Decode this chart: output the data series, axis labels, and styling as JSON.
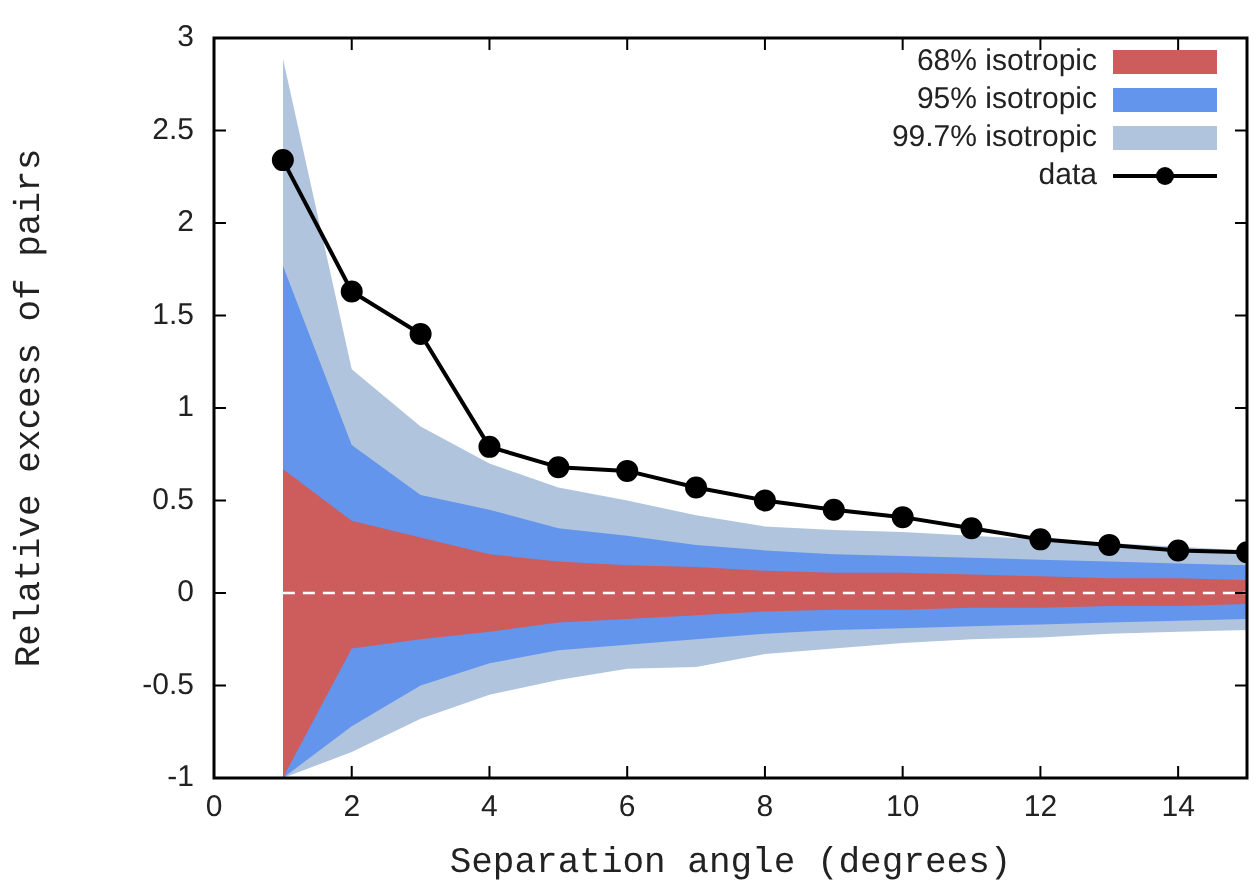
{
  "chart_data": {
    "type": "line",
    "xlabel": "Separation angle (degrees)",
    "ylabel": "Relative excess of pairs",
    "x": [
      1,
      2,
      3,
      4,
      5,
      6,
      7,
      8,
      9,
      10,
      11,
      12,
      13,
      14,
      15
    ],
    "xlim": [
      0,
      15
    ],
    "xticks": [
      0,
      2,
      4,
      6,
      8,
      10,
      12,
      14
    ],
    "ylim": [
      -1,
      3
    ],
    "yticks": [
      -1,
      -0.5,
      0,
      0.5,
      1,
      1.5,
      2,
      2.5,
      3
    ],
    "grid": false,
    "legend": "top right",
    "line_style": "solid",
    "series": [
      {
        "name": "68% isotropic",
        "color": "#cd5c5c",
        "values": [
          null,
          null,
          null,
          null,
          null,
          null,
          null,
          null,
          null,
          null,
          null,
          null,
          null,
          null,
          null
        ],
        "lower": [
          -1,
          -0.3,
          -0.25,
          -0.21,
          -0.16,
          -0.14,
          -0.12,
          -0.1,
          -0.09,
          -0.09,
          -0.08,
          -0.08,
          -0.07,
          -0.07,
          -0.06
        ],
        "upper": [
          0.67,
          0.39,
          0.3,
          0.21,
          0.17,
          0.15,
          0.14,
          0.12,
          0.11,
          0.11,
          0.1,
          0.09,
          0.08,
          0.08,
          0.07
        ]
      },
      {
        "name": "95% isotropic",
        "color": "#6495ed",
        "values": [
          null,
          null,
          null,
          null,
          null,
          null,
          null,
          null,
          null,
          null,
          null,
          null,
          null,
          null,
          null
        ],
        "lower": [
          -1,
          -0.72,
          -0.5,
          -0.38,
          -0.31,
          -0.28,
          -0.25,
          -0.22,
          -0.2,
          -0.19,
          -0.18,
          -0.17,
          -0.16,
          -0.15,
          -0.14
        ],
        "upper": [
          1.77,
          0.8,
          0.53,
          0.45,
          0.35,
          0.31,
          0.26,
          0.23,
          0.21,
          0.2,
          0.19,
          0.18,
          0.17,
          0.16,
          0.15
        ]
      },
      {
        "name": "99.7% isotropic",
        "color": "#b0c4de",
        "values": [
          null,
          null,
          null,
          null,
          null,
          null,
          null,
          null,
          null,
          null,
          null,
          null,
          null,
          null,
          null
        ],
        "lower": [
          -1,
          -0.86,
          -0.68,
          -0.55,
          -0.47,
          -0.41,
          -0.4,
          -0.33,
          -0.3,
          -0.27,
          -0.25,
          -0.24,
          -0.22,
          -0.21,
          -0.2
        ],
        "upper": [
          2.89,
          1.21,
          0.9,
          0.7,
          0.57,
          0.5,
          0.42,
          0.36,
          0.34,
          0.33,
          0.31,
          0.29,
          0.27,
          0.25,
          0.23
        ]
      },
      {
        "name": "data",
        "marker": "circle",
        "color": "#000000",
        "values": [
          2.34,
          1.63,
          1.4,
          0.79,
          0.68,
          0.66,
          0.57,
          0.5,
          0.45,
          0.41,
          0.35,
          0.29,
          0.26,
          0.23,
          0.22
        ]
      }
    ],
    "ref_lines": [
      {
        "axis": "y",
        "value": 0,
        "color": "#ffffff",
        "line_style": "dashed"
      }
    ]
  }
}
